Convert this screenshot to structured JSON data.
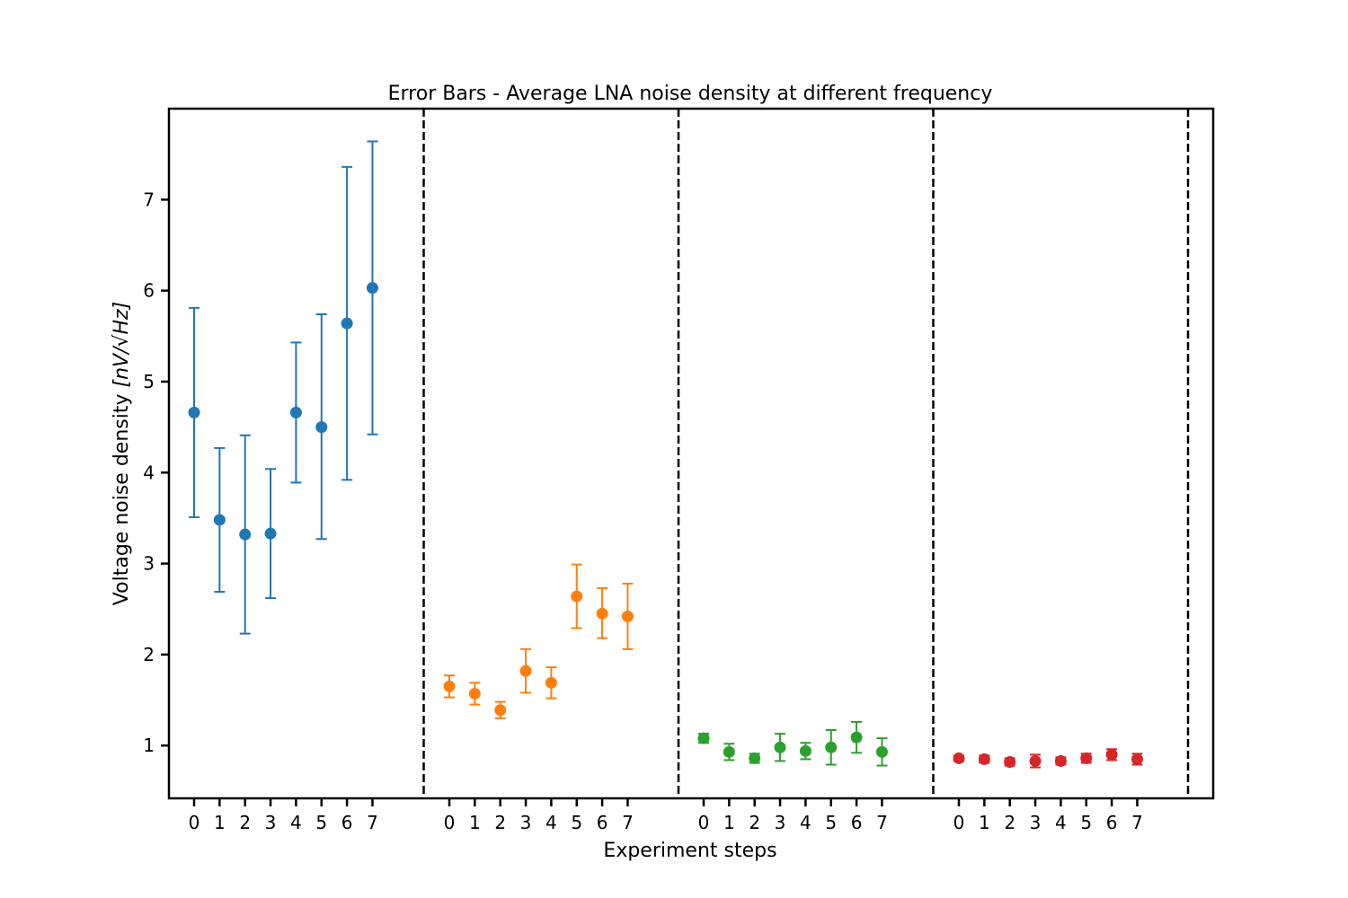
{
  "chart_data": {
    "type": "scatter",
    "title": "Error Bars - Average LNA noise density at different frequency",
    "xlabel": "Experiment steps",
    "ylabel": "Voltage noise density [nV/√Hz]",
    "ylabel_prefix": "Voltage noise density ",
    "ylabel_unit": "[nV/√Hz]",
    "ylim": [
      0.42,
      8.0
    ],
    "yticks": [
      1,
      2,
      3,
      4,
      5,
      6,
      7
    ],
    "grid": false,
    "group_separators": true,
    "step_labels": [
      "0",
      "1",
      "2",
      "3",
      "4",
      "5",
      "6",
      "7"
    ],
    "series": [
      {
        "color": "#1f77b4",
        "x": [
          0,
          1,
          2,
          3,
          4,
          5,
          6,
          7
        ],
        "values": [
          4.66,
          3.48,
          3.32,
          3.33,
          4.66,
          4.5,
          5.64,
          6.03
        ],
        "lower": [
          3.51,
          2.69,
          2.23,
          2.62,
          3.89,
          3.27,
          3.92,
          4.42
        ],
        "upper": [
          5.81,
          4.27,
          4.41,
          4.04,
          5.43,
          5.74,
          7.36,
          7.64
        ]
      },
      {
        "color": "#ff7f0e",
        "x": [
          0,
          1,
          2,
          3,
          4,
          5,
          6,
          7
        ],
        "values": [
          1.65,
          1.57,
          1.39,
          1.82,
          1.69,
          2.64,
          2.45,
          2.42
        ],
        "lower": [
          1.53,
          1.45,
          1.3,
          1.58,
          1.52,
          2.29,
          2.18,
          2.06
        ],
        "upper": [
          1.77,
          1.69,
          1.48,
          2.06,
          1.86,
          2.99,
          2.73,
          2.78
        ]
      },
      {
        "color": "#2ca02c",
        "x": [
          0,
          1,
          2,
          3,
          4,
          5,
          6,
          7
        ],
        "values": [
          1.08,
          0.93,
          0.86,
          0.98,
          0.94,
          0.98,
          1.09,
          0.93
        ],
        "lower": [
          1.03,
          0.84,
          0.81,
          0.83,
          0.85,
          0.79,
          0.92,
          0.78
        ],
        "upper": [
          1.13,
          1.02,
          0.91,
          1.13,
          1.03,
          1.17,
          1.26,
          1.08
        ]
      },
      {
        "color": "#d62728",
        "x": [
          0,
          1,
          2,
          3,
          4,
          5,
          6,
          7
        ],
        "values": [
          0.86,
          0.85,
          0.82,
          0.83,
          0.83,
          0.86,
          0.9,
          0.85
        ],
        "lower": [
          0.83,
          0.81,
          0.78,
          0.76,
          0.79,
          0.81,
          0.84,
          0.79
        ],
        "upper": [
          0.89,
          0.89,
          0.86,
          0.9,
          0.87,
          0.91,
          0.96,
          0.91
        ]
      }
    ]
  }
}
